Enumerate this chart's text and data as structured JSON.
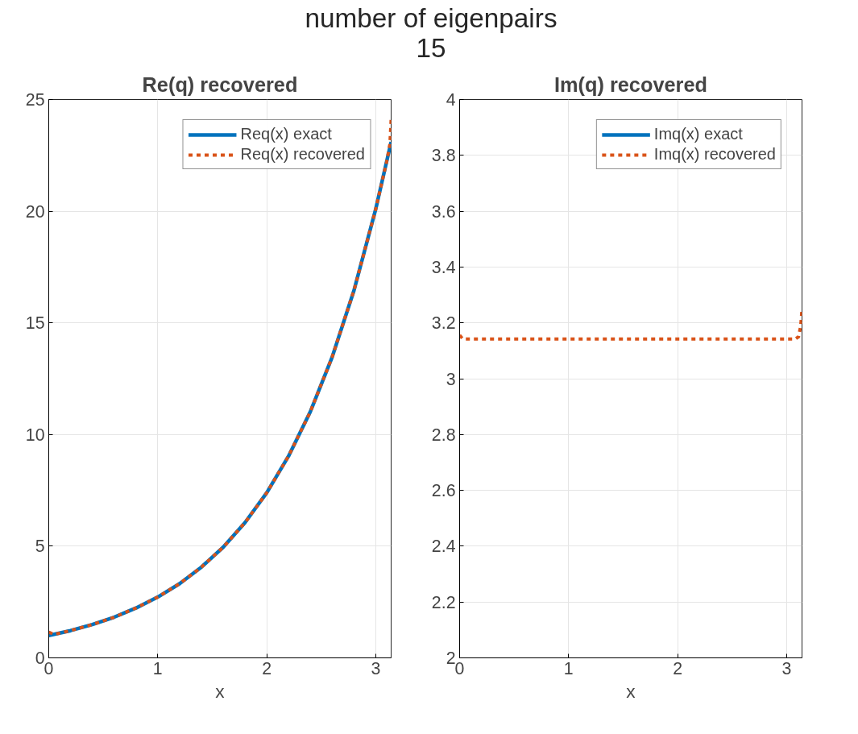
{
  "chart_data": [
    {
      "type": "line",
      "title": "Re(q) recovered",
      "subtitle": "number of eigenpairs\n15",
      "xlabel": "x",
      "xlim": [
        0,
        3.1416
      ],
      "xticks": [
        0,
        1,
        2,
        3
      ],
      "ylim": [
        0,
        25
      ],
      "yticks": [
        0,
        5,
        10,
        15,
        20,
        25
      ],
      "grid": true,
      "legend": "top right",
      "series": [
        {
          "name": "Req(x) exact",
          "color": "#0072bd",
          "line_style": "solid",
          "x": [
            0,
            0.2,
            0.4,
            0.6,
            0.8,
            1.0,
            1.2,
            1.4,
            1.6,
            1.8,
            2.0,
            2.2,
            2.4,
            2.6,
            2.8,
            3.0,
            3.1416
          ],
          "values": [
            1.0,
            1.22,
            1.49,
            1.82,
            2.23,
            2.72,
            3.32,
            4.06,
            4.95,
            6.05,
            7.39,
            9.03,
            11.02,
            13.46,
            16.44,
            20.09,
            23.1
          ]
        },
        {
          "name": "Req(x) recovered",
          "color": "#d95319",
          "line_style": "dotted",
          "x": [
            0,
            0.05,
            0.2,
            0.4,
            0.6,
            0.8,
            1.0,
            1.2,
            1.4,
            1.6,
            1.8,
            2.0,
            2.2,
            2.4,
            2.6,
            2.8,
            3.0,
            3.1,
            3.13,
            3.1416
          ],
          "values": [
            1.15,
            1.05,
            1.22,
            1.49,
            1.82,
            2.23,
            2.72,
            3.32,
            4.06,
            4.95,
            6.05,
            7.39,
            9.03,
            11.02,
            13.46,
            16.44,
            20.09,
            22.2,
            23.0,
            24.1
          ]
        }
      ]
    },
    {
      "type": "line",
      "title": "Im(q) recovered",
      "xlabel": "x",
      "xlim": [
        0,
        3.1416
      ],
      "xticks": [
        0,
        1,
        2,
        3
      ],
      "ylim": [
        2,
        4
      ],
      "yticks": [
        2,
        2.2,
        2.4,
        2.6,
        2.8,
        3,
        3.2,
        3.4,
        3.6,
        3.8,
        4
      ],
      "grid": true,
      "legend": "top right",
      "series": [
        {
          "name": "Imq(x) exact",
          "color": "#0072bd",
          "line_style": "solid"
        },
        {
          "name": "Imq(x) recovered",
          "color": "#d95319",
          "line_style": "dotted",
          "x": [
            0,
            0.03,
            0.5,
            1.0,
            1.5,
            2.0,
            2.5,
            3.0,
            3.08,
            3.11,
            3.13,
            3.1416
          ],
          "values": [
            3.156,
            3.142,
            3.142,
            3.142,
            3.142,
            3.142,
            3.142,
            3.142,
            3.142,
            3.15,
            3.19,
            3.25
          ]
        }
      ]
    }
  ]
}
